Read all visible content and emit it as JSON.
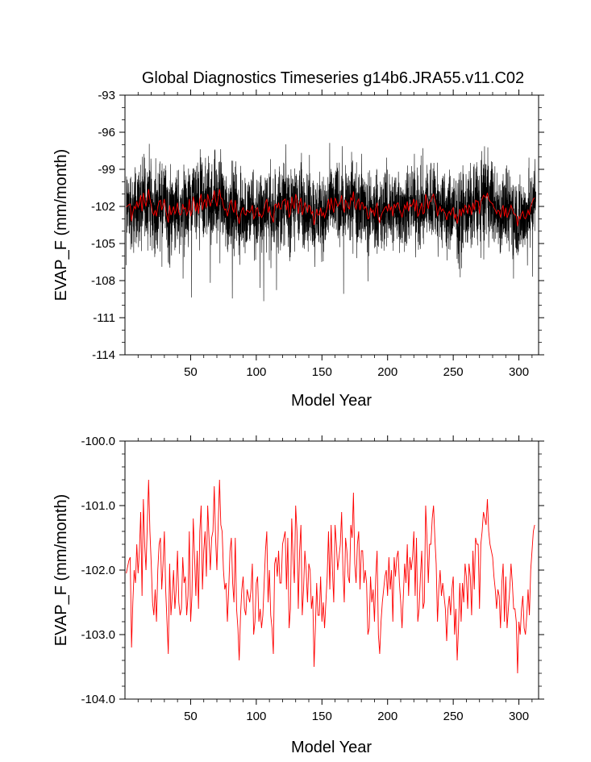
{
  "title": "Global Diagnostics Timeseries g14b6.JRA55.v11.C02",
  "colors": {
    "monthly": "#000000",
    "annual": "#ff0000",
    "axes": "#000000"
  },
  "chart_data": [
    {
      "type": "line",
      "xlabel": "Model Year",
      "ylabel": "EVAP_F (mm/month)",
      "xlim": [
        0,
        315
      ],
      "ylim": [
        -114,
        -93
      ],
      "xticks": [
        "50",
        "100",
        "150",
        "200",
        "250",
        "300"
      ],
      "yticks": [
        "-93",
        "-96",
        "-99",
        "-102",
        "-105",
        "-108",
        "-111",
        "-114"
      ],
      "series": [
        {
          "name": "",
          "resolution": "monthly",
          "color": "#000000",
          "notes_range": [
            -112,
            -95
          ]
        },
        {
          "name": "",
          "resolution": "annual",
          "color": "#ff0000",
          "x": [
            1,
            2,
            3,
            4,
            5,
            6,
            7,
            8,
            9,
            10,
            11,
            12,
            13,
            14,
            15,
            16,
            17,
            18,
            19,
            20,
            21,
            22,
            23,
            24,
            25,
            26,
            27,
            28,
            29,
            30,
            31,
            32,
            33,
            34,
            35,
            36,
            37,
            38,
            39,
            40,
            41,
            42,
            43,
            44,
            45,
            46,
            47,
            48,
            49,
            50,
            51,
            52,
            53,
            54,
            55,
            56,
            57,
            58,
            59,
            60,
            61,
            62,
            63,
            64,
            65,
            66,
            67,
            68,
            69,
            70,
            71,
            72,
            73,
            74,
            75,
            76,
            77,
            78,
            79,
            80,
            81,
            82,
            83,
            84,
            85,
            86,
            87,
            88,
            89,
            90,
            91,
            92,
            93,
            94,
            95,
            96,
            97,
            98,
            99,
            100,
            101,
            102,
            103,
            104,
            105,
            106,
            107,
            108,
            109,
            110,
            111,
            112,
            113,
            114,
            115,
            116,
            117,
            118,
            119,
            120,
            121,
            122,
            123,
            124,
            125,
            126,
            127,
            128,
            129,
            130,
            131,
            132,
            133,
            134,
            135,
            136,
            137,
            138,
            139,
            140,
            141,
            142,
            143,
            144,
            145,
            146,
            147,
            148,
            149,
            150,
            151,
            152,
            153,
            154,
            155,
            156,
            157,
            158,
            159,
            160,
            161,
            162,
            163,
            164,
            165,
            166,
            167,
            168,
            169,
            170,
            171,
            172,
            173,
            174,
            175,
            176,
            177,
            178,
            179,
            180,
            181,
            182,
            183,
            184,
            185,
            186,
            187,
            188,
            189,
            190,
            191,
            192,
            193,
            194,
            195,
            196,
            197,
            198,
            199,
            200,
            201,
            202,
            203,
            204,
            205,
            206,
            207,
            208,
            209,
            210,
            211,
            212,
            213,
            214,
            215,
            216,
            217,
            218,
            219,
            220,
            221,
            222,
            223,
            224,
            225,
            226,
            227,
            228,
            229,
            230,
            231,
            232,
            233,
            234,
            235,
            236,
            237,
            238,
            239,
            240,
            241,
            242,
            243,
            244,
            245,
            246,
            247,
            248,
            249,
            250,
            251,
            252,
            253,
            254,
            255,
            256,
            257,
            258,
            259,
            260,
            261,
            262,
            263,
            264,
            265,
            266,
            267,
            268,
            269,
            270,
            271,
            272,
            273,
            274,
            275,
            276,
            277,
            278,
            279,
            280,
            281,
            282,
            283,
            284,
            285,
            286,
            287,
            288,
            289,
            290,
            291,
            292,
            293,
            294,
            295,
            296,
            297,
            298,
            299,
            300,
            301,
            302,
            303,
            304,
            305,
            306,
            307,
            308,
            309,
            310,
            311,
            312
          ],
          "values": [
            -102.05,
            -101.95,
            -101.85,
            -101.8,
            -103.2,
            -102.5,
            -102.0,
            -102.2,
            -101.6,
            -102.05,
            -101.7,
            -101.1,
            -102.4,
            -100.9,
            -101.6,
            -102.0,
            -101.3,
            -100.6,
            -101.4,
            -101.9,
            -102.5,
            -102.7,
            -102.3,
            -102.8,
            -102.0,
            -101.6,
            -101.5,
            -102.3,
            -101.9,
            -101.4,
            -102.3,
            -102.8,
            -103.3,
            -101.9,
            -102.7,
            -102.4,
            -102.0,
            -102.6,
            -102.3,
            -101.7,
            -102.5,
            -102.7,
            -102.6,
            -101.8,
            -102.2,
            -102.1,
            -102.7,
            -102.4,
            -101.4,
            -102.8,
            -102.4,
            -101.2,
            -101.8,
            -102.4,
            -101.7,
            -102.6,
            -101.4,
            -101.0,
            -102.3,
            -101.7,
            -101.4,
            -102.1,
            -101.0,
            -101.5,
            -102.0,
            -101.5,
            -101.4,
            -100.7,
            -101.5,
            -102.0,
            -101.3,
            -100.6,
            -101.3,
            -101.4,
            -102.0,
            -102.3,
            -102.2,
            -102.8,
            -102.3,
            -101.7,
            -101.5,
            -102.2,
            -102.5,
            -101.5,
            -102.6,
            -102.9,
            -103.4,
            -102.7,
            -102.3,
            -102.1,
            -102.6,
            -102.7,
            -102.3,
            -102.4,
            -102.5,
            -102.3,
            -101.9,
            -103.0,
            -102.8,
            -102.2,
            -102.1,
            -102.8,
            -102.6,
            -102.9,
            -102.7,
            -102.2,
            -101.7,
            -101.4,
            -102.5,
            -102.0,
            -102.7,
            -102.9,
            -103.3,
            -101.9,
            -101.8,
            -102.1,
            -101.7,
            -102.2,
            -102.2,
            -101.6,
            -101.5,
            -101.4,
            -102.3,
            -101.5,
            -102.9,
            -102.6,
            -101.2,
            -101.8,
            -102.2,
            -101.0,
            -101.4,
            -102.6,
            -101.7,
            -101.3,
            -102.7,
            -102.3,
            -101.7,
            -102.0,
            -102.5,
            -101.9,
            -102.0,
            -102.6,
            -102.4,
            -103.5,
            -102.9,
            -102.2,
            -102.7,
            -102.7,
            -102.1,
            -102.8,
            -102.5,
            -102.9,
            -102.5,
            -102.1,
            -101.4,
            -102.3,
            -101.3,
            -102.0,
            -102.5,
            -101.3,
            -101.6,
            -102.0,
            -101.8,
            -101.6,
            -101.1,
            -102.0,
            -102.5,
            -101.5,
            -101.7,
            -102.1,
            -102.2,
            -101.3,
            -101.5,
            -100.8,
            -101.9,
            -102.2,
            -101.6,
            -101.4,
            -102.3,
            -101.7,
            -101.7,
            -102.2,
            -102.0,
            -102.2,
            -103.0,
            -102.9,
            -102.1,
            -102.5,
            -102.3,
            -102.8,
            -102.1,
            -101.7,
            -103.0,
            -103.3,
            -102.8,
            -102.5,
            -102.3,
            -102.1,
            -102.0,
            -102.4,
            -101.8,
            -102.3,
            -102.0,
            -102.8,
            -101.8,
            -102.1,
            -101.8,
            -101.7,
            -102.2,
            -102.5,
            -102.9,
            -102.4,
            -101.9,
            -102.2,
            -101.6,
            -102.4,
            -101.8,
            -102.0,
            -101.8,
            -101.4,
            -102.4,
            -101.5,
            -102.8,
            -102.6,
            -102.1,
            -101.7,
            -102.6,
            -102.5,
            -101.0,
            -101.5,
            -102.2,
            -101.6,
            -101.6,
            -101.2,
            -101.0,
            -101.5,
            -101.9,
            -102.8,
            -102.3,
            -102.0,
            -102.4,
            -102.2,
            -102.4,
            -102.6,
            -103.1,
            -102.6,
            -102.4,
            -102.7,
            -102.3,
            -102.1,
            -103.0,
            -102.6,
            -103.4,
            -102.9,
            -102.2,
            -102.8,
            -102.2,
            -102.5,
            -101.9,
            -102.1,
            -102.6,
            -101.9,
            -102.1,
            -102.7,
            -101.7,
            -102.3,
            -101.5,
            -101.6,
            -101.6,
            -102.6,
            -101.6,
            -101.4,
            -101.1,
            -101.2,
            -101.3,
            -100.9,
            -101.4,
            -101.6,
            -101.7,
            -101.8,
            -102.1,
            -102.3,
            -102.6,
            -102.3,
            -102.4,
            -102.9,
            -102.2,
            -101.9,
            -102.8,
            -102.1,
            -102.9,
            -102.6,
            -102.3,
            -101.9,
            -102.2,
            -102.6,
            -102.6,
            -102.8,
            -103.6,
            -102.8,
            -103.0,
            -102.6,
            -102.4,
            -102.9,
            -103.0,
            -102.7,
            -102.3,
            -102.7,
            -102.0,
            -101.7,
            -101.4,
            -101.3
          ]
        }
      ]
    },
    {
      "type": "line",
      "xlabel": "Model Year",
      "ylabel": "EVAP_F (mm/month)",
      "xlim": [
        0,
        315
      ],
      "ylim": [
        -104.0,
        -100.0
      ],
      "xticks": [
        "50",
        "100",
        "150",
        "200",
        "250",
        "300"
      ],
      "yticks": [
        "-100.0",
        "-101.0",
        "-102.0",
        "-103.0",
        "-104.0"
      ],
      "series": [
        {
          "name": "",
          "resolution": "annual",
          "color": "#ff0000",
          "ref": "same annual series as top panel"
        }
      ]
    }
  ]
}
